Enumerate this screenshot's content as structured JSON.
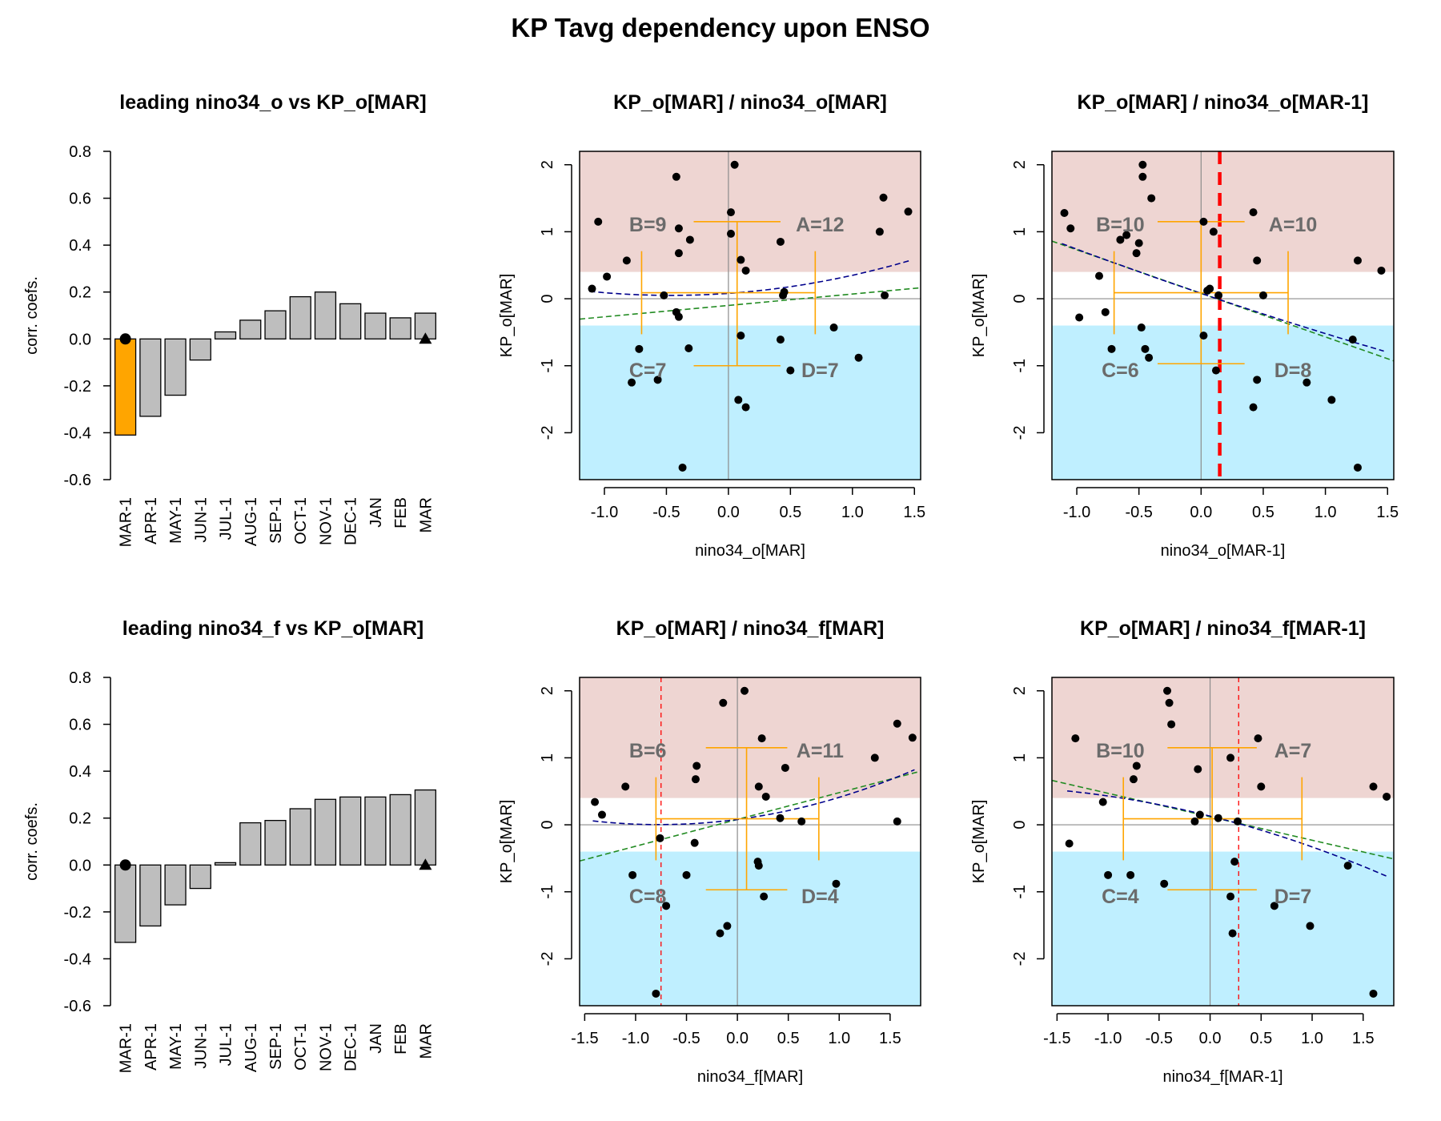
{
  "page": {
    "title": "KP Tavg dependency upon ENSO"
  },
  "colors": {
    "highlight_bar": "#FFA500",
    "bar": "#BEBEBE",
    "upper_band": "#EED5D2",
    "lower_band": "#BFEFFF",
    "orange": "#FFA500",
    "quad_label": "#6B6B6B",
    "linear_fit": "#228B22",
    "quad_fit": "#00008B",
    "cut": "#FF0000"
  },
  "chart_data": [
    {
      "type": "bar",
      "title": "leading nino34_o vs KP_o[MAR]",
      "ylabel": "corr. coefs.",
      "categories": [
        "MAR-1",
        "APR-1",
        "MAY-1",
        "JUN-1",
        "JUL-1",
        "AUG-1",
        "SEP-1",
        "OCT-1",
        "NOV-1",
        "DEC-1",
        "JAN",
        "FEB",
        "MAR"
      ],
      "values": [
        -0.41,
        -0.33,
        -0.24,
        -0.09,
        0.03,
        0.08,
        0.12,
        0.18,
        0.2,
        0.15,
        0.11,
        0.09,
        0.11
      ],
      "highlight_index": 0,
      "ylim": [
        -0.6,
        0.8
      ],
      "yticks": [
        "-0.6",
        "-0.4",
        "-0.2",
        "0.0",
        "0.2",
        "0.4",
        "0.6",
        "0.8"
      ]
    },
    {
      "type": "scatter",
      "title": "KP_o[MAR] / nino34_o[MAR]",
      "xlabel": "nino34_o[MAR]",
      "ylabel": "KP_o[MAR]",
      "xlim": [
        -1.2,
        1.55
      ],
      "ylim": [
        -2.7,
        2.2
      ],
      "xticks": [
        "-1.0",
        "-0.5",
        "0.0",
        "0.5",
        "1.0",
        "1.5"
      ],
      "yticks": [
        "-2",
        "-1",
        "0",
        "1",
        "2"
      ],
      "upper_threshold": 0.4,
      "lower_threshold": -0.4,
      "points": [
        [
          -1.1,
          0.15
        ],
        [
          -1.05,
          1.15
        ],
        [
          -0.98,
          0.33
        ],
        [
          -0.82,
          0.57
        ],
        [
          -0.78,
          -1.25
        ],
        [
          -0.72,
          -0.75
        ],
        [
          -0.57,
          -1.21
        ],
        [
          -0.52,
          0.05
        ],
        [
          -0.42,
          1.82
        ],
        [
          -0.42,
          -0.2
        ],
        [
          -0.4,
          -0.27
        ],
        [
          -0.4,
          0.68
        ],
        [
          -0.4,
          1.05
        ],
        [
          -0.37,
          -2.52
        ],
        [
          -0.32,
          -0.74
        ],
        [
          -0.31,
          0.88
        ],
        [
          0.02,
          0.97
        ],
        [
          0.02,
          1.29
        ],
        [
          0.05,
          2.0
        ],
        [
          0.08,
          -1.51
        ],
        [
          0.1,
          0.58
        ],
        [
          0.1,
          -0.55
        ],
        [
          0.14,
          -1.62
        ],
        [
          0.14,
          0.42
        ],
        [
          0.42,
          0.85
        ],
        [
          0.42,
          -0.61
        ],
        [
          0.44,
          0.05
        ],
        [
          0.45,
          0.1
        ],
        [
          0.5,
          -1.07
        ],
        [
          0.85,
          -0.43
        ],
        [
          1.05,
          -0.88
        ],
        [
          1.22,
          1.0
        ],
        [
          1.25,
          1.51
        ],
        [
          1.26,
          0.05
        ],
        [
          1.45,
          1.3
        ]
      ],
      "linear_fit": [
        -0.1,
        0.17
      ],
      "quad_fit": [
        0.08,
        0.13,
        0.14
      ],
      "orange_center": [
        0.07,
        0.09
      ],
      "orange_x_spread": [
        -0.7,
        0.7
      ],
      "orange_y_spread": [
        -1.0,
        1.15
      ],
      "quad_labels": [
        "A=12",
        "B=9",
        "C=7",
        "D=7"
      ]
    },
    {
      "type": "scatter",
      "title": "KP_o[MAR] / nino34_o[MAR-1]",
      "xlabel": "nino34_o[MAR-1]",
      "ylabel": "KP_o[MAR]",
      "xlim": [
        -1.2,
        1.55
      ],
      "ylim": [
        -2.7,
        2.2
      ],
      "xticks": [
        "-1.0",
        "-0.5",
        "0.0",
        "0.5",
        "1.0",
        "1.5"
      ],
      "yticks": [
        "-2",
        "-1",
        "0",
        "1",
        "2"
      ],
      "upper_threshold": 0.4,
      "lower_threshold": -0.4,
      "points": [
        [
          -1.1,
          1.28
        ],
        [
          -1.05,
          1.05
        ],
        [
          -0.98,
          -0.28
        ],
        [
          -0.82,
          0.34
        ],
        [
          -0.77,
          -0.2
        ],
        [
          -0.72,
          -0.75
        ],
        [
          -0.65,
          0.88
        ],
        [
          -0.6,
          0.95
        ],
        [
          -0.52,
          0.68
        ],
        [
          -0.5,
          0.83
        ],
        [
          -0.48,
          -0.43
        ],
        [
          -0.47,
          1.82
        ],
        [
          -0.47,
          2.0
        ],
        [
          -0.45,
          -0.75
        ],
        [
          -0.42,
          -0.88
        ],
        [
          -0.4,
          1.5
        ],
        [
          0.02,
          1.15
        ],
        [
          0.02,
          -0.55
        ],
        [
          0.05,
          0.12
        ],
        [
          0.07,
          0.15
        ],
        [
          0.1,
          1.0
        ],
        [
          0.12,
          -1.07
        ],
        [
          0.14,
          0.05
        ],
        [
          0.42,
          1.29
        ],
        [
          0.42,
          -1.62
        ],
        [
          0.45,
          0.57
        ],
        [
          0.45,
          -1.21
        ],
        [
          0.5,
          0.05
        ],
        [
          0.85,
          -1.25
        ],
        [
          1.05,
          -1.51
        ],
        [
          1.22,
          -0.61
        ],
        [
          1.26,
          0.57
        ],
        [
          1.26,
          -2.52
        ],
        [
          1.45,
          0.42
        ]
      ],
      "linear_fit": [
        0.08,
        -0.65
      ],
      "quad_fit": [
        0.08,
        -0.63,
        0.03
      ],
      "orange_center": [
        0.0,
        0.09
      ],
      "orange_x_spread": [
        -0.7,
        0.7
      ],
      "orange_y_spread": [
        -0.97,
        1.15
      ],
      "cut_x": 0.15,
      "cut_style": "thick",
      "quad_labels": [
        "A=10",
        "B=10",
        "C=6",
        "D=8"
      ]
    },
    {
      "type": "bar",
      "title": "leading nino34_f vs KP_o[MAR]",
      "ylabel": "corr. coefs.",
      "categories": [
        "MAR-1",
        "APR-1",
        "MAY-1",
        "JUN-1",
        "JUL-1",
        "AUG-1",
        "SEP-1",
        "OCT-1",
        "NOV-1",
        "DEC-1",
        "JAN",
        "FEB",
        "MAR"
      ],
      "values": [
        -0.33,
        -0.26,
        -0.17,
        -0.1,
        0.01,
        0.18,
        0.19,
        0.24,
        0.28,
        0.29,
        0.29,
        0.3,
        0.32
      ],
      "highlight_index": -1,
      "ylim": [
        -0.6,
        0.8
      ],
      "yticks": [
        "-0.6",
        "-0.4",
        "-0.2",
        "0.0",
        "0.2",
        "0.4",
        "0.6",
        "0.8"
      ]
    },
    {
      "type": "scatter",
      "title": "KP_o[MAR] / nino34_f[MAR]",
      "xlabel": "nino34_f[MAR]",
      "ylabel": "KP_o[MAR]",
      "xlim": [
        -1.55,
        1.8
      ],
      "ylim": [
        -2.7,
        2.2
      ],
      "xticks": [
        "-1.5",
        "-1.0",
        "-0.5",
        "0.0",
        "0.5",
        "1.0",
        "1.5"
      ],
      "yticks": [
        "-2",
        "-1",
        "0",
        "1",
        "2"
      ],
      "upper_threshold": 0.4,
      "lower_threshold": -0.4,
      "points": [
        [
          -1.4,
          0.34
        ],
        [
          -1.33,
          0.15
        ],
        [
          -1.1,
          0.57
        ],
        [
          -1.03,
          -0.75
        ],
        [
          -0.8,
          -2.52
        ],
        [
          -0.76,
          -0.2
        ],
        [
          -0.7,
          -1.21
        ],
        [
          -0.5,
          -0.75
        ],
        [
          -0.42,
          -0.27
        ],
        [
          -0.41,
          0.68
        ],
        [
          -0.4,
          0.88
        ],
        [
          -0.17,
          -1.62
        ],
        [
          -0.14,
          1.82
        ],
        [
          -0.1,
          -1.51
        ],
        [
          0.07,
          2.0
        ],
        [
          0.2,
          -0.55
        ],
        [
          0.21,
          -0.61
        ],
        [
          0.21,
          0.57
        ],
        [
          0.24,
          1.29
        ],
        [
          0.26,
          -1.07
        ],
        [
          0.28,
          0.42
        ],
        [
          0.42,
          0.1
        ],
        [
          0.47,
          0.85
        ],
        [
          0.63,
          0.05
        ],
        [
          0.97,
          -0.88
        ],
        [
          1.35,
          1.0
        ],
        [
          1.57,
          0.05
        ],
        [
          1.57,
          1.51
        ],
        [
          1.72,
          1.3
        ]
      ],
      "linear_fit": [
        0.08,
        0.4
      ],
      "quad_fit": [
        0.08,
        0.2,
        0.13
      ],
      "orange_center": [
        0.09,
        0.09
      ],
      "orange_x_spread": [
        -0.8,
        0.8
      ],
      "orange_y_spread": [
        -0.97,
        1.15
      ],
      "cut_x": -0.75,
      "cut_style": "thin",
      "quad_labels": [
        "A=11",
        "B=6",
        "C=8",
        "D=4"
      ]
    },
    {
      "type": "scatter",
      "title": "KP_o[MAR] / nino34_f[MAR-1]",
      "xlabel": "nino34_f[MAR-1]",
      "ylabel": "KP_o[MAR]",
      "xlim": [
        -1.55,
        1.8
      ],
      "ylim": [
        -2.7,
        2.2
      ],
      "xticks": [
        "-1.5",
        "-1.0",
        "-0.5",
        "0.0",
        "0.5",
        "1.0",
        "1.5"
      ],
      "yticks": [
        "-2",
        "-1",
        "0",
        "1",
        "2"
      ],
      "upper_threshold": 0.4,
      "lower_threshold": -0.4,
      "points": [
        [
          -1.38,
          -0.28
        ],
        [
          -1.32,
          1.29
        ],
        [
          -1.05,
          0.34
        ],
        [
          -1.0,
          -0.75
        ],
        [
          -0.78,
          -0.75
        ],
        [
          -0.75,
          0.68
        ],
        [
          -0.72,
          0.88
        ],
        [
          -0.45,
          -0.88
        ],
        [
          -0.42,
          2.0
        ],
        [
          -0.4,
          1.82
        ],
        [
          -0.38,
          1.5
        ],
        [
          -0.15,
          0.05
        ],
        [
          -0.12,
          0.83
        ],
        [
          -0.1,
          0.15
        ],
        [
          0.08,
          0.1
        ],
        [
          0.2,
          1.0
        ],
        [
          0.2,
          -1.07
        ],
        [
          0.22,
          -1.62
        ],
        [
          0.24,
          -0.55
        ],
        [
          0.27,
          0.05
        ],
        [
          0.47,
          1.29
        ],
        [
          0.5,
          0.57
        ],
        [
          0.63,
          -1.21
        ],
        [
          0.98,
          -1.51
        ],
        [
          1.35,
          -0.61
        ],
        [
          1.6,
          0.57
        ],
        [
          1.6,
          -2.52
        ],
        [
          1.73,
          0.42
        ]
      ],
      "linear_fit": [
        0.12,
        -0.35
      ],
      "quad_fit": [
        0.13,
        -0.38,
        -0.08
      ],
      "orange_center": [
        0.02,
        0.09
      ],
      "orange_x_spread": [
        -0.85,
        0.9
      ],
      "orange_y_spread": [
        -0.97,
        1.15
      ],
      "cut_x": 0.28,
      "cut_style": "thin",
      "quad_labels": [
        "A=7",
        "B=10",
        "C=4",
        "D=7"
      ]
    }
  ]
}
